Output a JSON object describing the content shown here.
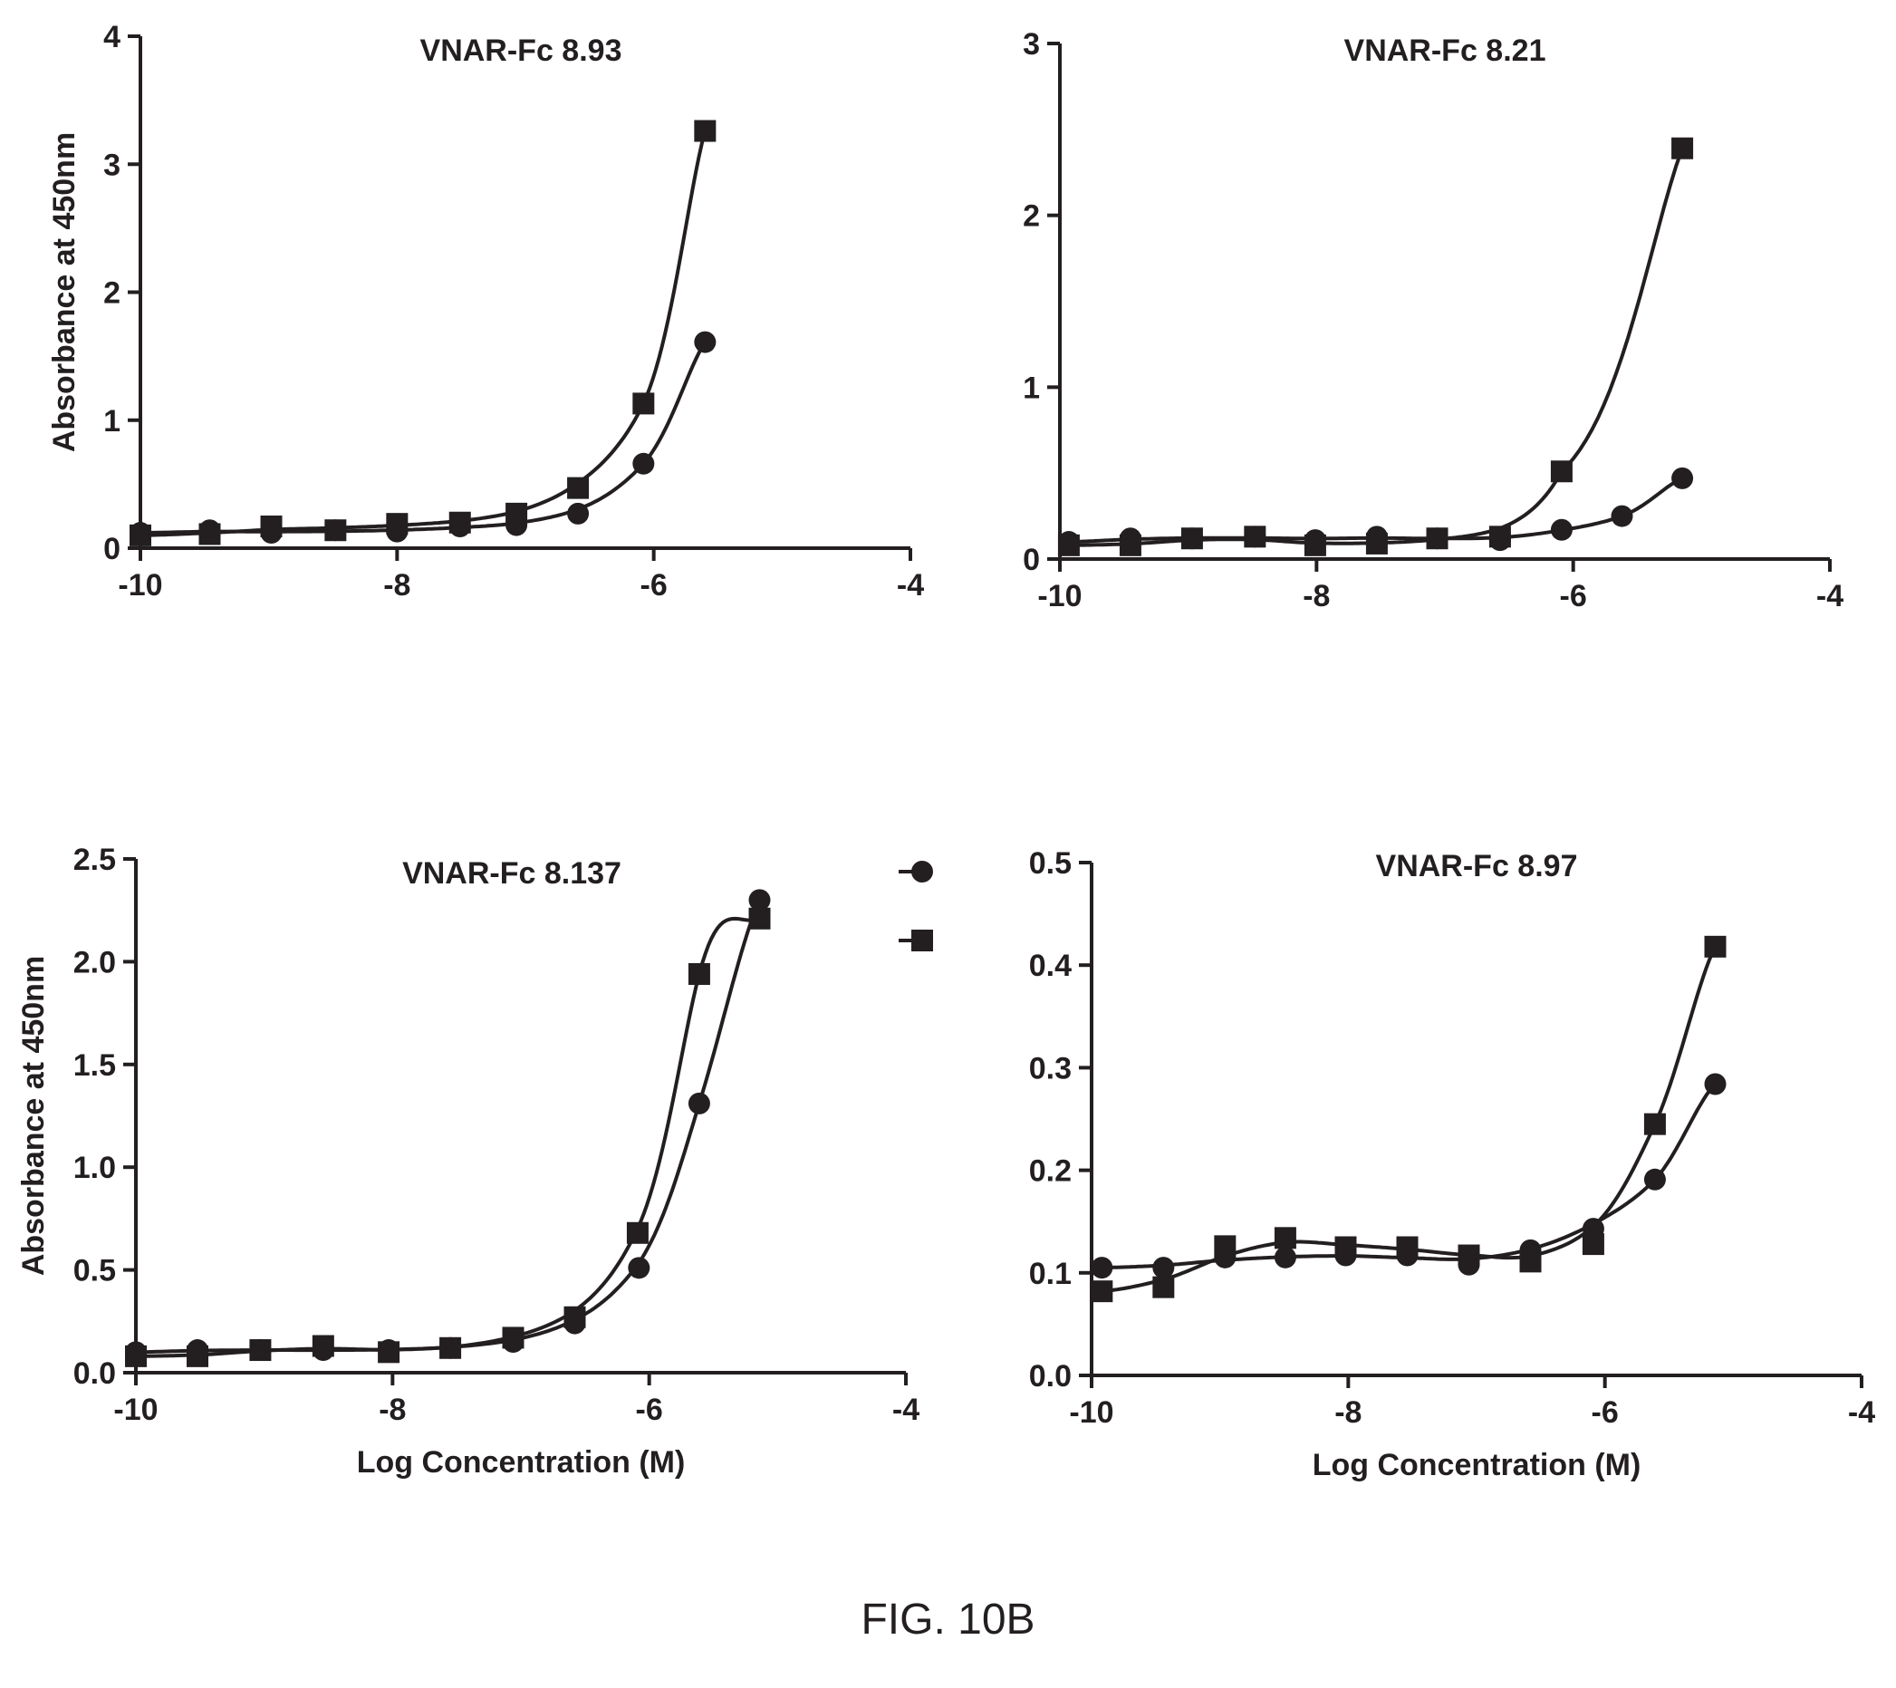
{
  "caption": "FIG. 10B",
  "chart_data": [
    {
      "type": "scatter",
      "title": "VNAR-Fc 8.93",
      "xlabel": "",
      "ylabel": "Absorbance at 450nm",
      "xlim": [
        -10,
        -4
      ],
      "ylim": [
        0,
        4
      ],
      "xticks": [
        -10,
        -8,
        -6,
        -4
      ],
      "yticks": [
        0,
        1,
        2,
        3,
        4
      ],
      "ytick_labels": [
        "0",
        "1",
        "2",
        "3",
        "4"
      ],
      "series": [
        {
          "marker": "circle",
          "x": [
            -10.0,
            -9.46,
            -8.98,
            -8.48,
            -8.0,
            -7.51,
            -7.07,
            -6.59,
            -6.08,
            -5.6
          ],
          "y": [
            0.12,
            0.14,
            0.12,
            0.14,
            0.13,
            0.17,
            0.18,
            0.27,
            0.66,
            1.61
          ]
        },
        {
          "marker": "square",
          "x": [
            -10.0,
            -9.46,
            -8.98,
            -8.48,
            -8.0,
            -7.51,
            -7.07,
            -6.59,
            -6.08,
            -5.6
          ],
          "y": [
            0.1,
            0.11,
            0.17,
            0.14,
            0.19,
            0.2,
            0.27,
            0.47,
            1.13,
            3.26
          ]
        }
      ]
    },
    {
      "type": "scatter",
      "title": "VNAR-Fc 8.21",
      "xlabel": "",
      "ylabel": "",
      "xlim": [
        -10,
        -4
      ],
      "ylim": [
        0,
        3
      ],
      "xticks": [
        -10,
        -8,
        -6,
        -4
      ],
      "yticks": [
        0,
        1,
        2,
        3
      ],
      "ytick_labels": [
        "0",
        "1",
        "2",
        "3"
      ],
      "series": [
        {
          "marker": "circle",
          "x": [
            -9.93,
            -9.45,
            -8.97,
            -8.48,
            -8.01,
            -7.53,
            -7.06,
            -6.57,
            -6.09,
            -5.62,
            -5.15
          ],
          "y": [
            0.1,
            0.12,
            0.12,
            0.13,
            0.11,
            0.13,
            0.12,
            0.11,
            0.17,
            0.25,
            0.47
          ]
        },
        {
          "marker": "square",
          "x": [
            -9.93,
            -9.45,
            -8.97,
            -8.48,
            -8.01,
            -7.53,
            -7.06,
            -6.57,
            -6.09,
            -5.15
          ],
          "y": [
            0.08,
            0.08,
            0.12,
            0.13,
            0.08,
            0.09,
            0.12,
            0.13,
            0.51,
            2.39
          ]
        }
      ]
    },
    {
      "type": "scatter",
      "title": "VNAR-Fc 8.137",
      "xlabel": "Log Concentration (M)",
      "ylabel": "Absorbance at 450nm",
      "xlim": [
        -10,
        -4
      ],
      "ylim": [
        0,
        2.5
      ],
      "xticks": [
        -10,
        -8,
        -6,
        -4
      ],
      "yticks": [
        0,
        0.5,
        1.0,
        1.5,
        2.0,
        2.5
      ],
      "ytick_labels": [
        "0.0",
        "0.5",
        "1.0",
        "1.5",
        "2.0",
        "2.5"
      ],
      "legend": "right",
      "series": [
        {
          "marker": "circle",
          "x": [
            -10.0,
            -9.52,
            -9.03,
            -8.54,
            -8.03,
            -7.55,
            -7.06,
            -6.58,
            -6.08,
            -5.61,
            -5.14
          ],
          "y": [
            0.1,
            0.11,
            0.11,
            0.11,
            0.11,
            0.12,
            0.15,
            0.24,
            0.51,
            1.31,
            2.3
          ]
        },
        {
          "marker": "square",
          "x": [
            -10.0,
            -9.52,
            -9.03,
            -8.54,
            -8.03,
            -7.55,
            -7.06,
            -6.58,
            -6.09,
            -5.61,
            -5.14
          ],
          "y": [
            0.08,
            0.08,
            0.11,
            0.13,
            0.1,
            0.12,
            0.17,
            0.27,
            0.68,
            1.94,
            2.21
          ]
        }
      ]
    },
    {
      "type": "scatter",
      "title": "VNAR-Fc 8.97",
      "xlabel": "Log Concentration (M)",
      "ylabel": "",
      "xlim": [
        -10,
        -4
      ],
      "ylim": [
        0,
        0.5
      ],
      "xticks": [
        -10,
        -8,
        -6,
        -4
      ],
      "yticks": [
        0,
        0.1,
        0.2,
        0.3,
        0.4,
        0.5
      ],
      "ytick_labels": [
        "0.0",
        "0.1",
        "0.2",
        "0.3",
        "0.4",
        "0.5"
      ],
      "series": [
        {
          "marker": "circle",
          "x": [
            -9.92,
            -9.44,
            -8.96,
            -8.49,
            -8.02,
            -7.54,
            -7.06,
            -6.58,
            -6.09,
            -5.61,
            -5.14
          ],
          "y": [
            0.105,
            0.105,
            0.115,
            0.115,
            0.117,
            0.117,
            0.108,
            0.122,
            0.143,
            0.191,
            0.284
          ]
        },
        {
          "marker": "square",
          "x": [
            -9.92,
            -9.44,
            -8.96,
            -8.49,
            -8.02,
            -7.54,
            -7.06,
            -6.58,
            -6.09,
            -5.61,
            -5.14
          ],
          "y": [
            0.082,
            0.086,
            0.126,
            0.134,
            0.125,
            0.125,
            0.117,
            0.111,
            0.128,
            0.245,
            0.418
          ]
        }
      ]
    }
  ]
}
